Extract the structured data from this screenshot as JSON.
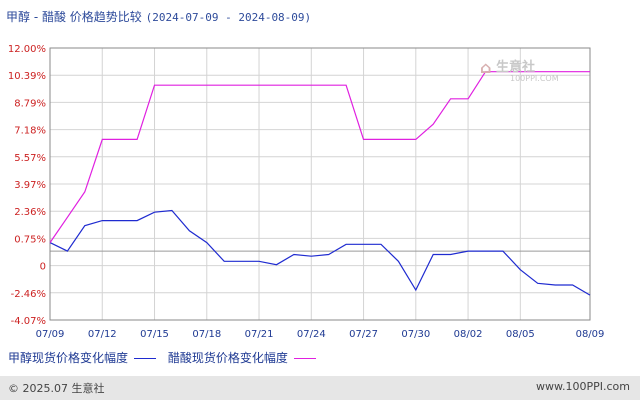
{
  "header": {
    "title": "甲醇 - 醋酸 价格趋势比较",
    "date_range": "(2024-07-09 - 2024-08-09)"
  },
  "watermark": {
    "text": "生意社",
    "sub": "100PPI.COM",
    "icon": "house-logo-icon"
  },
  "footer": {
    "left": "© 2025.07 生意社",
    "right": "www.100PPI.com"
  },
  "colors": {
    "series_1": "#1f2bd0",
    "series_2": "#e020e0",
    "grid": "#d4d4d4",
    "ytick": "#cc2222",
    "xtick": "#1f3a93"
  },
  "chart_data": {
    "type": "line",
    "title": "甲醇 - 醋酸 价格趋势比较",
    "xlabel": "",
    "ylabel": "",
    "x_ticks": [
      "07/09",
      "07/12",
      "07/15",
      "07/18",
      "07/21",
      "07/24",
      "07/27",
      "07/30",
      "08/02",
      "08/05",
      "08/09"
    ],
    "y_ticks": [
      "12.00%",
      "10.39%",
      "8.79%",
      "7.18%",
      "5.57%",
      "3.97%",
      "2.36%",
      "0.75%",
      "0",
      "-2.46%",
      "-4.07%"
    ],
    "ylim": [
      -4.07,
      12.0
    ],
    "grid": true,
    "legend_position": "bottom",
    "x_dates": [
      "07/09",
      "07/10",
      "07/11",
      "07/12",
      "07/13",
      "07/14",
      "07/15",
      "07/16",
      "07/17",
      "07/18",
      "07/19",
      "07/20",
      "07/21",
      "07/22",
      "07/23",
      "07/24",
      "07/25",
      "07/26",
      "07/27",
      "07/28",
      "07/29",
      "07/30",
      "07/31",
      "08/01",
      "08/02",
      "08/03",
      "08/04",
      "08/05",
      "08/06",
      "08/07",
      "08/08",
      "08/09"
    ],
    "series": [
      {
        "name": "甲醇现货价格变化幅度",
        "color": "#1f2bd0",
        "values": [
          0.5,
          0.0,
          1.5,
          1.8,
          1.8,
          1.8,
          2.3,
          2.4,
          1.2,
          0.5,
          -0.6,
          -0.6,
          -0.6,
          -0.8,
          -0.2,
          -0.3,
          -0.2,
          0.4,
          0.4,
          0.4,
          -0.6,
          -2.3,
          -0.2,
          -0.2,
          0.0,
          0.0,
          0.0,
          -1.1,
          -1.9,
          -2.0,
          -2.0,
          -2.6
        ]
      },
      {
        "name": "醋酸现货价格变化幅度",
        "color": "#e020e0",
        "values": [
          0.5,
          2.0,
          3.5,
          6.6,
          6.6,
          6.6,
          9.8,
          9.8,
          9.8,
          9.8,
          9.8,
          9.8,
          9.8,
          9.8,
          9.8,
          9.8,
          9.8,
          9.8,
          6.6,
          6.6,
          6.6,
          6.6,
          7.5,
          9.0,
          9.0,
          10.6,
          10.6,
          10.6,
          10.6,
          10.6,
          10.6,
          10.6
        ]
      }
    ]
  }
}
